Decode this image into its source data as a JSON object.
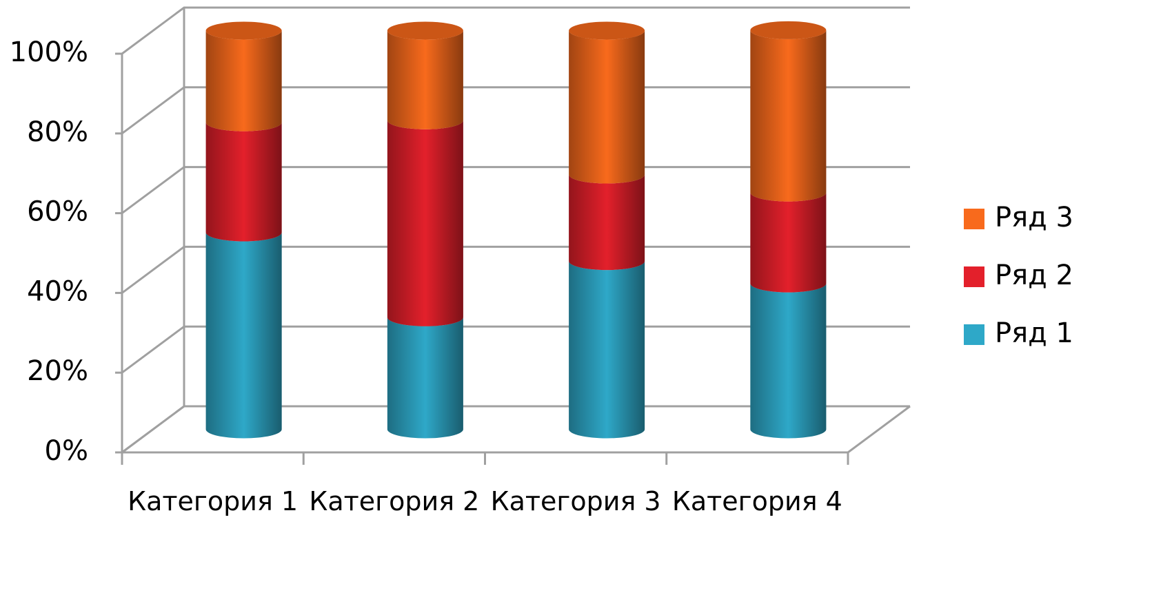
{
  "chart_data": {
    "type": "bar",
    "stacked": true,
    "shape": "cylinder",
    "categories": [
      "Категория 1",
      "Категория 2",
      "Категория 3",
      "Категория 4"
    ],
    "series": [
      {
        "name": "Ряд 1",
        "color": "#2ea8c8",
        "values": [
          49.4,
          28.1,
          42.2,
          36.6
        ]
      },
      {
        "name": "Ряд 2",
        "color": "#e3202b",
        "values": [
          27.6,
          49.4,
          21.7,
          22.8
        ]
      },
      {
        "name": "Ряд 3",
        "color": "#f86a1c",
        "values": [
          23.0,
          22.5,
          36.1,
          40.7
        ]
      }
    ],
    "ylim": [
      0,
      100
    ],
    "yticks": [
      {
        "value": 0,
        "label": "0%"
      },
      {
        "value": 20,
        "label": "20%"
      },
      {
        "value": 40,
        "label": "40%"
      },
      {
        "value": 60,
        "label": "60%"
      },
      {
        "value": 80,
        "label": "80%"
      },
      {
        "value": 100,
        "label": "100%"
      }
    ],
    "grid": true,
    "legend": "right"
  }
}
